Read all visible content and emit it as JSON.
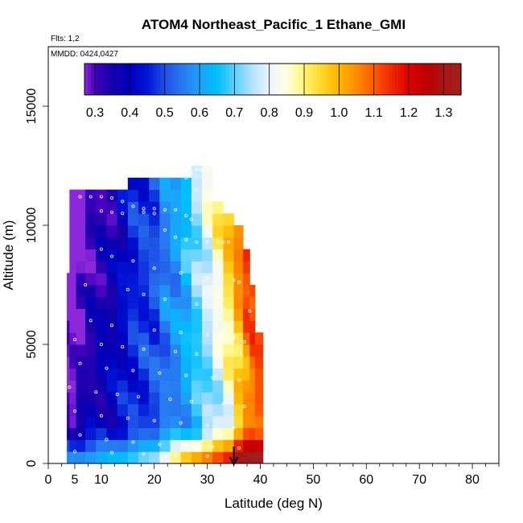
{
  "chart_data": {
    "type": "heatmap",
    "title": "ATOM4 Northeast_Pacific_1 Ethane_GMI",
    "annotations": [
      "Flts: 1,2",
      "MMDD: 0424,0427"
    ],
    "xlabel": "Latitude (deg N)",
    "ylabel": "Altitude (m)",
    "xlim": [
      0,
      85
    ],
    "ylim": [
      0,
      17500
    ],
    "x_ticks": [
      0,
      5,
      10,
      20,
      30,
      40,
      50,
      60,
      70,
      80
    ],
    "y_ticks": [
      0,
      5000,
      10000,
      15000
    ],
    "colorbar": {
      "min": 0.27,
      "max": 1.35,
      "ticks": [
        "0.3",
        "0.4",
        "0.5",
        "0.6",
        "0.7",
        "0.8",
        "0.9",
        "1.0",
        "1.1",
        "1.2",
        "1.3"
      ],
      "placement": "top-inside"
    },
    "arrow_at_latitude": 35,
    "column_profile": [
      {
        "lat": 3.5,
        "top": 8000,
        "base": 0.35,
        "trend": -0.05
      },
      {
        "lat": 4.5,
        "top": 11500,
        "base": 0.33,
        "trend": -0.04
      },
      {
        "lat": 6,
        "top": 11500,
        "base": 0.36,
        "trend": -0.03
      },
      {
        "lat": 8,
        "top": 11500,
        "base": 0.38,
        "trend": -0.02
      },
      {
        "lat": 10,
        "top": 11500,
        "base": 0.4,
        "trend": -0.02
      },
      {
        "lat": 12,
        "top": 11500,
        "base": 0.42,
        "trend": -0.02
      },
      {
        "lat": 14,
        "top": 11500,
        "base": 0.44,
        "trend": -0.01
      },
      {
        "lat": 16,
        "top": 12000,
        "base": 0.46,
        "trend": 0.0
      },
      {
        "lat": 18,
        "top": 12000,
        "base": 0.48,
        "trend": 0.0
      },
      {
        "lat": 20,
        "top": 12000,
        "base": 0.5,
        "trend": 0.0
      },
      {
        "lat": 22,
        "top": 12000,
        "base": 0.53,
        "trend": 0.01
      },
      {
        "lat": 24,
        "top": 12000,
        "base": 0.56,
        "trend": 0.01
      },
      {
        "lat": 26,
        "top": 12000,
        "base": 0.59,
        "trend": 0.02
      },
      {
        "lat": 28,
        "top": 12500,
        "base": 0.63,
        "trend": 0.03
      },
      {
        "lat": 30,
        "top": 12500,
        "base": 0.67,
        "trend": 0.04
      },
      {
        "lat": 32,
        "top": 11000,
        "base": 0.72,
        "trend": 0.05
      },
      {
        "lat": 34,
        "top": 10500,
        "base": 0.78,
        "trend": 0.06
      },
      {
        "lat": 36,
        "top": 10000,
        "base": 0.85,
        "trend": 0.07
      },
      {
        "lat": 37.5,
        "top": 9000,
        "base": 0.92,
        "trend": 0.08
      },
      {
        "lat": 38.5,
        "top": 7500,
        "base": 0.96,
        "trend": 0.08
      },
      {
        "lat": 39.5,
        "top": 5500,
        "base": 0.98,
        "trend": 0.08
      }
    ],
    "surface_layer": {
      "altitude_range": [
        0,
        1500
      ],
      "values_by_lat": [
        [
          5,
          0.62
        ],
        [
          10,
          0.66
        ],
        [
          15,
          0.7
        ],
        [
          20,
          0.78
        ],
        [
          25,
          1.0
        ],
        [
          30,
          1.15
        ],
        [
          35,
          1.25
        ],
        [
          38,
          1.3
        ]
      ]
    },
    "observation_points": [
      [
        6,
        11200
      ],
      [
        8,
        11200
      ],
      [
        10,
        11200
      ],
      [
        12,
        11150
      ],
      [
        14,
        11000
      ],
      [
        16,
        10800
      ],
      [
        18,
        10700
      ],
      [
        20,
        10700
      ],
      [
        22,
        10650
      ],
      [
        24,
        10650
      ],
      [
        10,
        10600
      ],
      [
        12,
        10550
      ],
      [
        14,
        10500
      ],
      [
        18,
        10550
      ],
      [
        20,
        10500
      ],
      [
        26,
        10400
      ],
      [
        27,
        10250
      ],
      [
        26,
        12000
      ],
      [
        28,
        12350
      ],
      [
        29,
        12350
      ],
      [
        30,
        12300
      ],
      [
        31,
        12300
      ],
      [
        32,
        12300
      ],
      [
        33,
        12300
      ],
      [
        27,
        12200
      ],
      [
        28,
        11500
      ],
      [
        22,
        9800
      ],
      [
        24,
        9500
      ],
      [
        26,
        9400
      ],
      [
        28,
        9300
      ],
      [
        30,
        9300
      ],
      [
        32,
        9300
      ],
      [
        33,
        9300
      ],
      [
        34,
        9300
      ],
      [
        10,
        9000
      ],
      [
        12,
        8700
      ],
      [
        16,
        8500
      ],
      [
        20,
        8200
      ],
      [
        25,
        8000
      ],
      [
        30,
        7800
      ],
      [
        35,
        7700
      ],
      [
        36,
        7600
      ],
      [
        7,
        7500
      ],
      [
        15,
        7300
      ],
      [
        18,
        7100
      ],
      [
        22,
        6900
      ],
      [
        28,
        6700
      ],
      [
        33,
        6500
      ],
      [
        38,
        6400
      ],
      [
        8,
        6000
      ],
      [
        12,
        5800
      ],
      [
        20,
        5600
      ],
      [
        25,
        5500
      ],
      [
        30,
        5400
      ],
      [
        35,
        5300
      ],
      [
        37,
        5100
      ],
      [
        5,
        5200
      ],
      [
        10,
        5000
      ],
      [
        14,
        4900
      ],
      [
        18,
        4800
      ],
      [
        24,
        4700
      ],
      [
        28,
        4600
      ],
      [
        32,
        4500
      ],
      [
        6,
        4200
      ],
      [
        11,
        4000
      ],
      [
        16,
        3900
      ],
      [
        21,
        3800
      ],
      [
        26,
        3700
      ],
      [
        31,
        3600
      ],
      [
        36,
        3500
      ],
      [
        4,
        3200
      ],
      [
        9,
        3000
      ],
      [
        13,
        2900
      ],
      [
        17,
        2800
      ],
      [
        23,
        2700
      ],
      [
        27,
        2600
      ],
      [
        33,
        2500
      ],
      [
        37,
        2400
      ],
      [
        5,
        2200
      ],
      [
        10,
        2000
      ],
      [
        15,
        1900
      ],
      [
        20,
        1800
      ],
      [
        25,
        1700
      ],
      [
        30,
        1600
      ],
      [
        35,
        1500
      ],
      [
        6,
        1200
      ],
      [
        11,
        1000
      ],
      [
        16,
        900
      ],
      [
        21,
        800
      ],
      [
        26,
        750
      ],
      [
        31,
        700
      ],
      [
        36,
        650
      ],
      [
        5,
        500
      ],
      [
        12,
        450
      ],
      [
        18,
        400
      ],
      [
        24,
        350
      ],
      [
        30,
        300
      ]
    ]
  }
}
